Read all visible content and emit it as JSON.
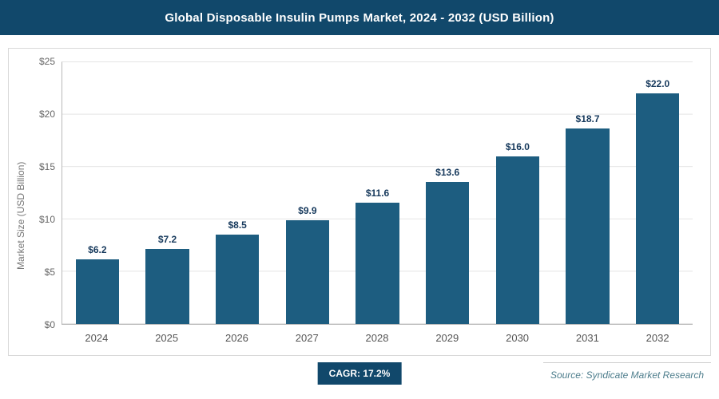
{
  "header": {
    "title": "Global Disposable Insulin Pumps Market, 2024 - 2032 (USD Billion)"
  },
  "chart_data": {
    "type": "bar",
    "title": "Global Disposable Insulin Pumps Market, 2024 - 2032 (USD Billion)",
    "categories": [
      "2024",
      "2025",
      "2026",
      "2027",
      "2028",
      "2029",
      "2030",
      "2031",
      "2032"
    ],
    "values": [
      6.2,
      7.2,
      8.5,
      9.9,
      11.6,
      13.6,
      16.0,
      18.7,
      22.0
    ],
    "value_labels": [
      "$6.2",
      "$7.2",
      "$8.5",
      "$9.9",
      "$11.6",
      "$13.6",
      "$16.0",
      "$18.7",
      "$22.0"
    ],
    "xlabel": "",
    "ylabel": "Market Size (USD Billion)",
    "ylim": [
      0,
      25
    ],
    "yticks": [
      {
        "value": 0,
        "label": "$0"
      },
      {
        "value": 5,
        "label": "$5"
      },
      {
        "value": 10,
        "label": "$10"
      },
      {
        "value": 15,
        "label": "$15"
      },
      {
        "value": 20,
        "label": "$20"
      },
      {
        "value": 25,
        "label": "$25"
      }
    ],
    "grid": true,
    "legend_position": "none",
    "bar_color": "#1d5d80",
    "header_color": "#11486b"
  },
  "footer": {
    "cagr_label": "CAGR: 17.2%",
    "source": "Source: Syndicate Market Research"
  }
}
